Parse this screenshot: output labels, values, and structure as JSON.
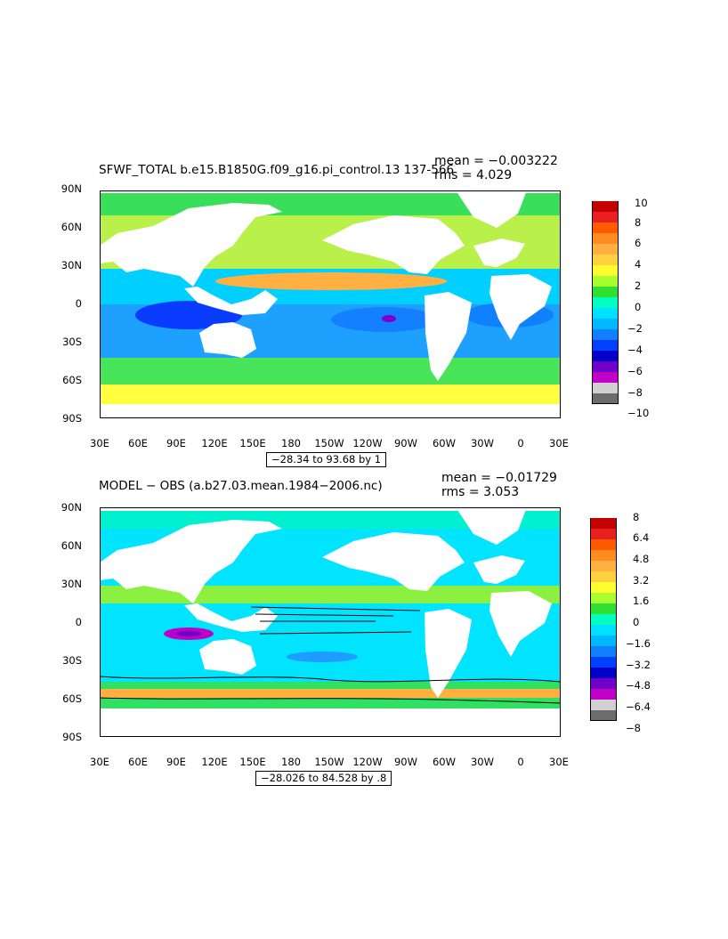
{
  "panels": [
    {
      "id": "top",
      "title": "SFWF_TOTAL b.e15.B1850G.f09_g16.pi_control.13 137-566",
      "stats": {
        "mean": "mean = −0.003222",
        "rms": "rms = 4.029"
      },
      "range_label": "−28.34 to 93.68 by 1",
      "lat_labels": [
        "90N",
        "60N",
        "30N",
        "0",
        "30S",
        "60S",
        "90S"
      ],
      "lon_labels": [
        "30E",
        "60E",
        "90E",
        "120E",
        "150E",
        "180",
        "150W",
        "120W",
        "90W",
        "60W",
        "30W",
        "0",
        "30E"
      ],
      "colorbar": {
        "colors": [
          "#c40000",
          "#e82020",
          "#ff5a00",
          "#ff8c20",
          "#ffb040",
          "#ffd040",
          "#ffff30",
          "#a8ff30",
          "#30e030",
          "#00ffc0",
          "#00e0ff",
          "#00b8ff",
          "#1080ff",
          "#0040ff",
          "#0000c8",
          "#7000c8",
          "#c000c8",
          "#d0d0d0",
          "#6c6c6c"
        ],
        "tick_labels": [
          "10",
          "8",
          "6",
          "4",
          "2",
          "0",
          "−2",
          "−4",
          "−6",
          "−8",
          "−10"
        ]
      }
    },
    {
      "id": "bottom",
      "title": "MODEL − OBS (a.b27.03.mean.1984−2006.nc)",
      "stats": {
        "mean": "mean = −0.01729",
        "rms": "rms = 3.053"
      },
      "range_label": "−28.026 to 84.528 by .8",
      "lat_labels": [
        "90N",
        "60N",
        "30N",
        "0",
        "30S",
        "60S",
        "90S"
      ],
      "lon_labels": [
        "30E",
        "60E",
        "90E",
        "120E",
        "150E",
        "180",
        "150W",
        "120W",
        "90W",
        "60W",
        "30W",
        "0",
        "30E"
      ],
      "colorbar": {
        "colors": [
          "#c40000",
          "#e82020",
          "#ff5a00",
          "#ff8c20",
          "#ffb040",
          "#ffd040",
          "#ffff30",
          "#a8ff30",
          "#30e030",
          "#00ffc0",
          "#00e0ff",
          "#00b8ff",
          "#1080ff",
          "#0040ff",
          "#0000c8",
          "#7000c8",
          "#c000c8",
          "#d0d0d0",
          "#6c6c6c"
        ],
        "tick_labels": [
          "8",
          "6.4",
          "4.8",
          "3.2",
          "1.6",
          "0",
          "−1.6",
          "−3.2",
          "−4.8",
          "−6.4",
          "−8"
        ]
      }
    }
  ]
}
